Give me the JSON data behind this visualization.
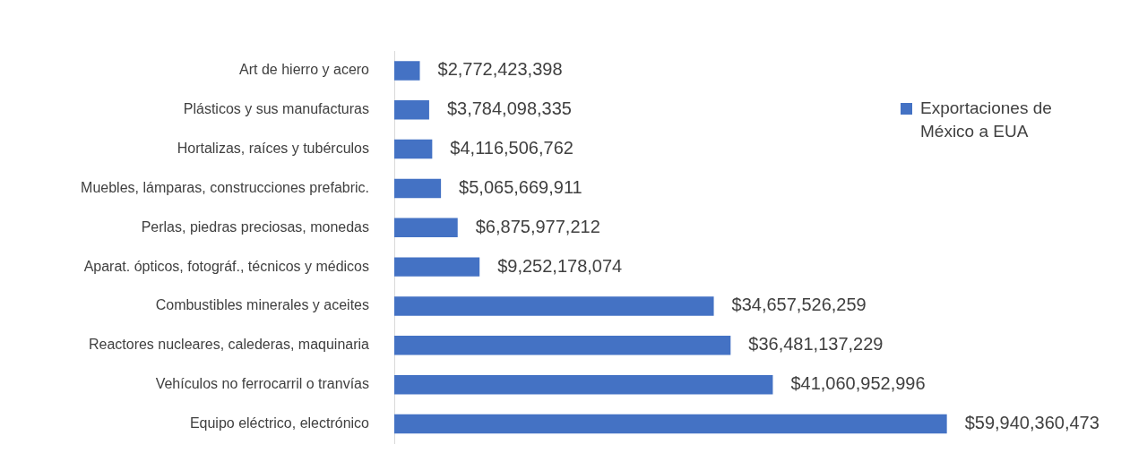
{
  "chart_data": {
    "type": "bar",
    "orientation": "horizontal",
    "categories": [
      "Art de hierro y acero",
      "Plásticos y sus manufacturas",
      "Hortalizas, raíces y tubérculos",
      "Muebles, lámparas, construcciones prefabric.",
      "Perlas, piedras preciosas, monedas",
      "Aparat. ópticos, fotográf., técnicos y médicos",
      "Combustibles minerales y aceites",
      "Reactores nucleares, calederas, maquinaria",
      "Vehículos no ferrocarril o tranvías",
      "Equipo eléctrico, electrónico"
    ],
    "series": [
      {
        "name": "Exportaciones de México a EUA",
        "color": "#4472c4",
        "values": [
          2772423398,
          3784098335,
          4116506762,
          5065669911,
          6875977212,
          9252178074,
          34657526259,
          36481137229,
          41060952996,
          59940360473
        ],
        "value_labels": [
          "$2,772,423,398",
          "$3,784,098,335",
          "$4,116,506,762",
          "$5,065,669,911",
          "$6,875,977,212",
          "$9,252,178,074",
          "$34,657,526,259",
          "$36,481,137,229",
          "$41,060,952,996",
          "$59,940,360,473"
        ]
      }
    ],
    "legend": "right"
  }
}
